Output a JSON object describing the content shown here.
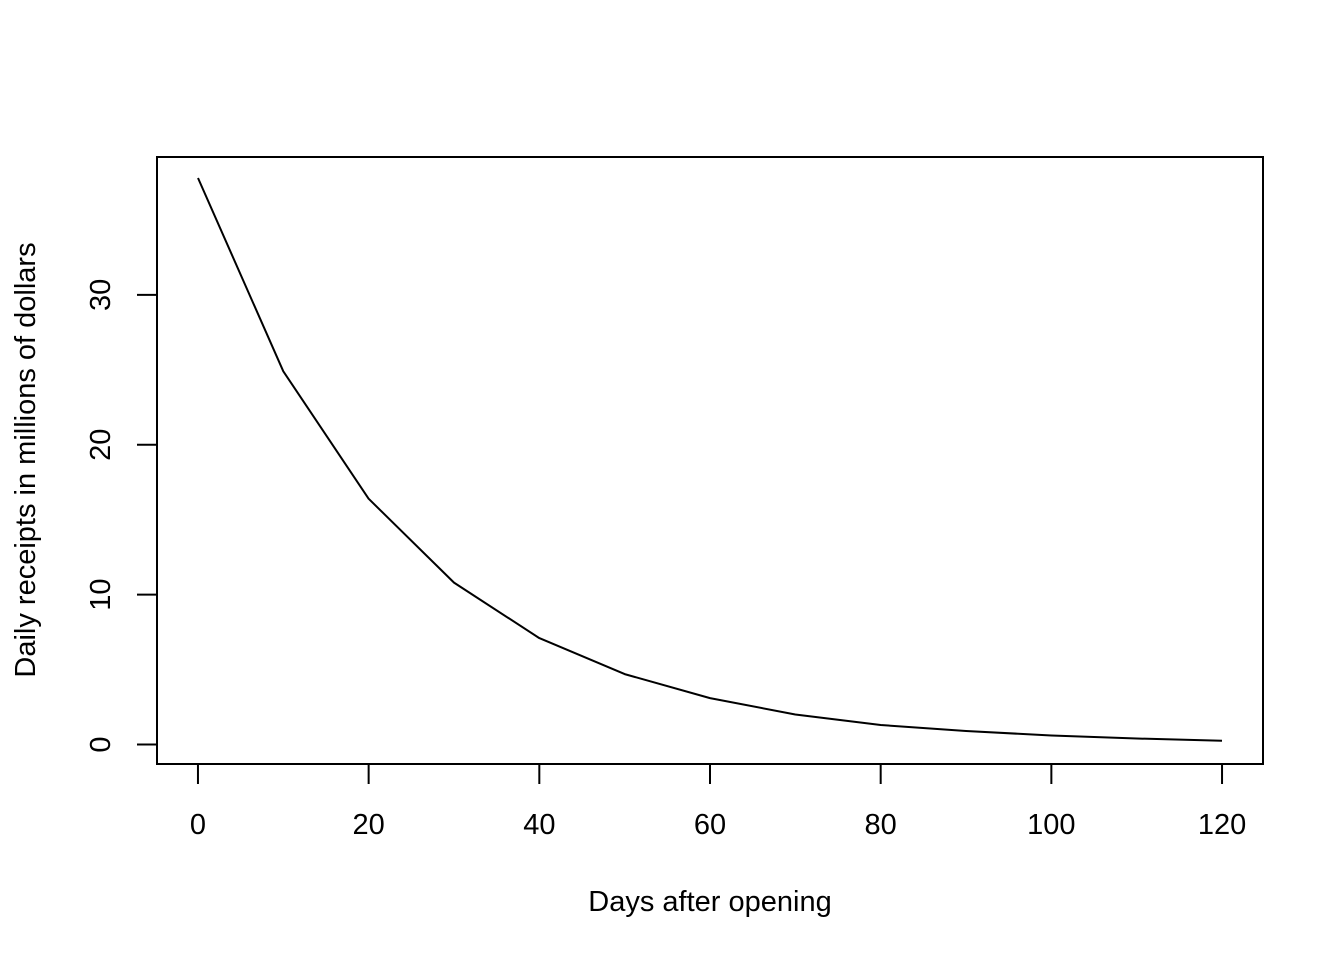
{
  "chart_data": {
    "type": "line",
    "title": "",
    "xlabel": "Days after opening",
    "ylabel": "Daily receipts in millions of dollars",
    "xlim": [
      -4.8,
      124.8
    ],
    "ylim": [
      -1.3,
      39.2
    ],
    "x_ticks": [
      0,
      20,
      40,
      60,
      80,
      100,
      120
    ],
    "y_ticks": [
      0,
      10,
      20,
      30
    ],
    "grid": false,
    "box": true,
    "series": [
      {
        "color": "#000000",
        "x": [
          0,
          10,
          20,
          30,
          40,
          50,
          60,
          70,
          80,
          90,
          100,
          110,
          120
        ],
        "y": [
          37.8,
          24.9,
          16.4,
          10.8,
          7.1,
          4.7,
          3.1,
          2.0,
          1.3,
          0.9,
          0.6,
          0.4,
          0.25
        ]
      }
    ]
  }
}
